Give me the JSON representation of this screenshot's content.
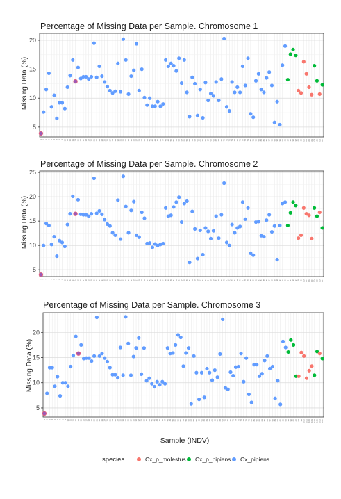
{
  "colors": {
    "Cx_p_molestus": "#F8766D",
    "Cx_p_pipiens": "#00BA38",
    "Cx_pipiens": "#619CFF",
    "highlight": "#9B59B6"
  },
  "legend": {
    "title": "species",
    "entries": [
      "Cx_p_molestus",
      "Cx_p_pipiens",
      "Cx_pipiens"
    ]
  },
  "xlabel": "Sample (INDV)",
  "chart_data": [
    {
      "type": "scatter",
      "title": "Percentage of Missing Data per Sample. Chromosome 1",
      "ylabel": "Missing Data (%)",
      "yticks": [
        5,
        10,
        15,
        20
      ],
      "ylim": [
        3.3,
        21.2
      ],
      "x": [
        1,
        2,
        3,
        4,
        5,
        6,
        7,
        8,
        9,
        10,
        11,
        12,
        13,
        14,
        15,
        16,
        17,
        18,
        19,
        20,
        21,
        22,
        23,
        24,
        25,
        26,
        27,
        28,
        29,
        30,
        31,
        32,
        33,
        34,
        35,
        36,
        37,
        38,
        39,
        40,
        41,
        42,
        43,
        44,
        45,
        46,
        47,
        48,
        49,
        50,
        51,
        52,
        53,
        54,
        55,
        56,
        57,
        58,
        59,
        60,
        61,
        62,
        63,
        64,
        65,
        66,
        67,
        68,
        69,
        70,
        71,
        72,
        73,
        74,
        75,
        76,
        77,
        78,
        79,
        80,
        81,
        82,
        83,
        84,
        85,
        86,
        87,
        88,
        89,
        90,
        91,
        92,
        93,
        94,
        95,
        96,
        97,
        98,
        99,
        100,
        101,
        102,
        103,
        104,
        105,
        106,
        107
      ],
      "y": [
        3.9,
        7.6,
        11.5,
        14.3,
        8.5,
        10.5,
        6.5,
        9.2,
        9.2,
        8.2,
        11.9,
        13.9,
        16.6,
        12.9,
        15.3,
        13.4,
        13.7,
        13.7,
        13.3,
        13.7,
        19.5,
        13.6,
        15.5,
        13.8,
        12.8,
        12.0,
        11.3,
        10.9,
        11.2,
        16.0,
        11.1,
        20.2,
        16.6,
        10.7,
        13.8,
        14.8,
        19.4,
        11.3,
        15.0,
        10.1,
        8.8,
        10.0,
        8.6,
        8.6,
        9.4,
        8.6,
        9.0,
        16.6,
        15.5,
        16.0,
        15.6,
        14.7,
        16.9,
        12.6,
        16.6,
        11.0,
        6.8,
        13.6,
        12.5,
        7.0,
        11.5,
        6.6,
        12.7,
        9.6,
        10.8,
        10.4,
        12.8,
        9.6,
        13.3,
        20.3,
        8.5,
        7.8,
        12.8,
        11.0,
        11.9,
        11.0,
        15.5,
        12.2,
        16.9,
        7.3,
        6.7,
        13.0,
        14.2,
        11.5,
        11.0,
        13.5,
        14.5,
        12.2,
        5.8,
        9.4,
        5.4,
        15.7,
        19.0,
        13.2,
        17.6,
        18.4,
        17.4,
        11.3,
        10.9,
        16.3,
        14.2,
        11.9,
        10.6,
        15.6,
        13.0,
        10.7,
        12.3
      ],
      "species": [
        "H",
        "B",
        "B",
        "B",
        "B",
        "B",
        "B",
        "B",
        "B",
        "B",
        "B",
        "B",
        "B",
        "H",
        "B",
        "B",
        "B",
        "B",
        "B",
        "B",
        "B",
        "B",
        "B",
        "B",
        "B",
        "B",
        "B",
        "B",
        "B",
        "B",
        "B",
        "B",
        "B",
        "B",
        "B",
        "B",
        "B",
        "B",
        "B",
        "B",
        "B",
        "B",
        "B",
        "B",
        "B",
        "B",
        "B",
        "B",
        "B",
        "B",
        "B",
        "B",
        "B",
        "B",
        "B",
        "B",
        "B",
        "B",
        "B",
        "B",
        "B",
        "B",
        "B",
        "B",
        "B",
        "B",
        "B",
        "B",
        "B",
        "B",
        "B",
        "B",
        "B",
        "B",
        "B",
        "B",
        "B",
        "B",
        "B",
        "B",
        "B",
        "B",
        "B",
        "B",
        "B",
        "B",
        "B",
        "B",
        "B",
        "B",
        "B",
        "B",
        "B",
        "G",
        "G",
        "G",
        "G",
        "R",
        "R",
        "R",
        "R",
        "R",
        "R",
        "G",
        "G",
        "R",
        "G"
      ]
    },
    {
      "type": "scatter",
      "title": "Percentage of Missing Data per Sample. Chromosome 2",
      "ylabel": "Missing Data (%)",
      "yticks": [
        5,
        10,
        15,
        20,
        25
      ],
      "ylim": [
        3.6,
        25.3
      ],
      "x": [
        1,
        2,
        3,
        4,
        5,
        6,
        7,
        8,
        9,
        10,
        11,
        12,
        13,
        14,
        15,
        16,
        17,
        18,
        19,
        20,
        21,
        22,
        23,
        24,
        25,
        26,
        27,
        28,
        29,
        30,
        31,
        32,
        33,
        34,
        35,
        36,
        37,
        38,
        39,
        40,
        41,
        42,
        43,
        44,
        45,
        46,
        47,
        48,
        49,
        50,
        51,
        52,
        53,
        54,
        55,
        56,
        57,
        58,
        59,
        60,
        61,
        62,
        63,
        64,
        65,
        66,
        67,
        68,
        69,
        70,
        71,
        72,
        73,
        74,
        75,
        76,
        77,
        78,
        79,
        80,
        81,
        82,
        83,
        84,
        85,
        86,
        87,
        88,
        89,
        90,
        91,
        92,
        93,
        94,
        95,
        96,
        97,
        98,
        99,
        100,
        101,
        102,
        103,
        104,
        105,
        106,
        107
      ],
      "y": [
        4.0,
        10.0,
        14.5,
        14.1,
        10.2,
        11.8,
        7.8,
        11.0,
        10.6,
        9.8,
        14.3,
        16.5,
        20.1,
        16.5,
        19.4,
        16.4,
        16.3,
        16.3,
        16.0,
        16.5,
        23.8,
        16.6,
        17.1,
        16.4,
        15.3,
        14.4,
        14.0,
        12.6,
        12.1,
        19.3,
        11.3,
        24.2,
        18.0,
        12.6,
        17.2,
        19.0,
        12.1,
        11.7,
        16.8,
        15.6,
        10.4,
        10.5,
        9.6,
        10.3,
        10.0,
        10.2,
        10.4,
        17.7,
        16.0,
        16.2,
        17.9,
        18.9,
        19.9,
        14.8,
        18.6,
        19.1,
        6.5,
        17.0,
        13.4,
        7.3,
        13.1,
        8.1,
        13.6,
        12.9,
        11.4,
        13.0,
        16.0,
        11.5,
        16.3,
        22.8,
        10.6,
        10.0,
        14.3,
        12.6,
        13.6,
        13.9,
        18.9,
        15.4,
        17.7,
        8.4,
        8.0,
        14.8,
        14.9,
        12.0,
        11.8,
        15.2,
        16.3,
        12.8,
        14.0,
        7.1,
        14.1,
        18.6,
        18.9,
        14.1,
        16.7,
        18.9,
        18.2,
        11.5,
        12.1,
        17.7,
        16.5,
        16.2,
        11.4,
        17.7,
        16.0,
        16.8,
        13.6
      ],
      "species": [
        "H",
        "B",
        "B",
        "B",
        "B",
        "B",
        "B",
        "B",
        "B",
        "B",
        "B",
        "B",
        "B",
        "H",
        "B",
        "B",
        "B",
        "B",
        "B",
        "B",
        "B",
        "B",
        "B",
        "B",
        "B",
        "B",
        "B",
        "B",
        "B",
        "B",
        "B",
        "B",
        "B",
        "B",
        "B",
        "B",
        "B",
        "B",
        "B",
        "B",
        "B",
        "B",
        "B",
        "B",
        "B",
        "B",
        "B",
        "B",
        "B",
        "B",
        "B",
        "B",
        "B",
        "B",
        "B",
        "B",
        "B",
        "B",
        "B",
        "B",
        "B",
        "B",
        "B",
        "B",
        "B",
        "B",
        "B",
        "B",
        "B",
        "B",
        "B",
        "B",
        "B",
        "B",
        "B",
        "B",
        "B",
        "B",
        "B",
        "B",
        "B",
        "B",
        "B",
        "B",
        "B",
        "B",
        "B",
        "B",
        "B",
        "B",
        "B",
        "B",
        "B",
        "G",
        "G",
        "G",
        "G",
        "R",
        "R",
        "R",
        "R",
        "R",
        "R",
        "G",
        "G",
        "R",
        "G"
      ]
    },
    {
      "type": "scatter",
      "title": "Percentage of Missing Data per Sample. Chromosome 3",
      "ylabel": "Missing Data (%)",
      "yticks": [
        5,
        10,
        15,
        20
      ],
      "ylim": [
        3.2,
        23.9
      ],
      "x": [
        1,
        2,
        3,
        4,
        5,
        6,
        7,
        8,
        9,
        10,
        11,
        12,
        13,
        14,
        15,
        16,
        17,
        18,
        19,
        20,
        21,
        22,
        23,
        24,
        25,
        26,
        27,
        28,
        29,
        30,
        31,
        32,
        33,
        34,
        35,
        36,
        37,
        38,
        39,
        40,
        41,
        42,
        43,
        44,
        45,
        46,
        47,
        48,
        49,
        50,
        51,
        52,
        53,
        54,
        55,
        56,
        57,
        58,
        59,
        60,
        61,
        62,
        63,
        64,
        65,
        66,
        67,
        68,
        69,
        70,
        71,
        72,
        73,
        74,
        75,
        76,
        77,
        78,
        79,
        80,
        81,
        82,
        83,
        84,
        85,
        86,
        87,
        88,
        89,
        90,
        91,
        92,
        93,
        94,
        95,
        96,
        97,
        98,
        99,
        100,
        101,
        102,
        103,
        104,
        105,
        106,
        107
      ],
      "y": [
        3.9,
        7.9,
        13.0,
        13.0,
        9.3,
        11.2,
        7.4,
        10.0,
        10.0,
        9.3,
        13.2,
        15.4,
        19.2,
        15.8,
        17.5,
        14.8,
        14.9,
        14.9,
        14.3,
        15.3,
        23.0,
        15.3,
        15.8,
        14.9,
        14.2,
        13.0,
        11.6,
        11.6,
        11.0,
        17.0,
        11.5,
        23.1,
        17.8,
        11.5,
        15.2,
        16.9,
        18.9,
        11.7,
        16.9,
        10.4,
        10.9,
        9.8,
        9.2,
        10.2,
        9.6,
        10.2,
        9.8,
        16.9,
        15.8,
        15.9,
        17.5,
        19.5,
        19.0,
        13.3,
        15.9,
        16.9,
        5.8,
        15.3,
        12.0,
        6.7,
        12.0,
        7.1,
        12.8,
        12.0,
        10.5,
        12.5,
        11.1,
        15.7,
        22.6,
        9.0,
        8.7,
        12.1,
        11.4,
        13.1,
        13.2,
        15.8,
        10.2,
        14.9,
        7.7,
        6.1,
        13.6,
        13.6,
        11.3,
        11.8,
        14.4,
        15.3,
        12.8,
        13.2,
        6.9,
        10.4,
        5.7,
        18.2,
        17.0,
        16.1,
        18.5,
        17.5,
        11.3,
        11.3,
        16.0,
        15.3,
        10.9,
        12.4,
        13.3,
        11.5,
        16.2,
        15.8,
        14.8
      ],
      "species": [
        "H",
        "B",
        "B",
        "B",
        "B",
        "B",
        "B",
        "B",
        "B",
        "B",
        "B",
        "B",
        "B",
        "H",
        "B",
        "B",
        "B",
        "B",
        "B",
        "B",
        "B",
        "B",
        "B",
        "B",
        "B",
        "B",
        "B",
        "B",
        "B",
        "B",
        "B",
        "B",
        "B",
        "B",
        "B",
        "B",
        "B",
        "B",
        "B",
        "B",
        "B",
        "B",
        "B",
        "B",
        "B",
        "B",
        "B",
        "B",
        "B",
        "B",
        "B",
        "B",
        "B",
        "B",
        "B",
        "B",
        "B",
        "B",
        "B",
        "B",
        "B",
        "B",
        "B",
        "B",
        "B",
        "B",
        "B",
        "B",
        "B",
        "B",
        "B",
        "B",
        "B",
        "B",
        "B",
        "B",
        "B",
        "B",
        "B",
        "B",
        "B",
        "B",
        "B",
        "B",
        "B",
        "B",
        "B",
        "B",
        "B",
        "B",
        "B",
        "B",
        "B",
        "G",
        "G",
        "G",
        "G",
        "R",
        "R",
        "R",
        "R",
        "R",
        "R",
        "G",
        "G",
        "R",
        "G"
      ]
    }
  ]
}
